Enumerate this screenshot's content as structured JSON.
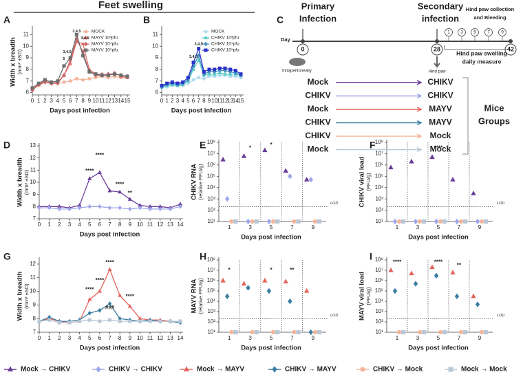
{
  "figure": {
    "title": "Feet swelling",
    "legend": [
      {
        "name": "Mock → CHIKV",
        "color": "#6a3d9a",
        "marker": "triangle"
      },
      {
        "name": "CHIKV → CHIKV",
        "color": "#9ea6ea",
        "marker": "diamond"
      },
      {
        "name": "Mock → MAYV",
        "color": "#e2645c",
        "marker": "triangle"
      },
      {
        "name": "CHIKV → MAYV",
        "color": "#3b7ea1",
        "marker": "diamond"
      },
      {
        "name": "CHIKV → Mock",
        "color": "#f3b59a",
        "marker": "circle"
      },
      {
        "name": "Mock → Mock",
        "color": "#b9c7d6",
        "marker": "square"
      }
    ]
  },
  "diagram": {
    "panel": "C",
    "primary": [
      "Primary",
      "Infection"
    ],
    "secondary": [
      "Secondary",
      "infection"
    ],
    "collection": [
      "Hind paw collection",
      "and Bleeding"
    ],
    "day": "Day",
    "days": [
      "0",
      "28",
      "42"
    ],
    "sample_days": [
      "1",
      "3",
      "5",
      "7",
      "9"
    ],
    "measure": [
      "Hind paw swelling",
      "daily measure"
    ],
    "route1": "Intraperitoneally",
    "route2": "Hind paw",
    "groups_label": [
      "Mice",
      "Groups"
    ],
    "groups": [
      {
        "primary": "Mock",
        "secondary": "CHIKV",
        "color": "#6a3d9a"
      },
      {
        "primary": "CHIKV",
        "secondary": "CHIKV",
        "color": "#9ea6ea"
      },
      {
        "primary": "Mock",
        "secondary": "MAYV",
        "color": "#e2645c"
      },
      {
        "primary": "CHIKV",
        "secondary": "MAYV",
        "color": "#3b7ea1"
      },
      {
        "primary": "CHIKV",
        "secondary": "Mock",
        "color": "#f3b59a"
      },
      {
        "primary": "Mock",
        "secondary": "Mock",
        "color": "#b9c7d6"
      }
    ]
  },
  "chart_data": [
    {
      "type": "line",
      "panel": "A",
      "xlabel": "Days post infection",
      "ylabel": [
        "Width x breadth",
        "(mm² ±SD)"
      ],
      "x": [
        0,
        1,
        2,
        3,
        4,
        5,
        6,
        7,
        8,
        9,
        10,
        11,
        12,
        13,
        14,
        15
      ],
      "xlim": [
        0,
        15
      ],
      "xticks": [
        0,
        1,
        2,
        3,
        4,
        5,
        6,
        7,
        8,
        9,
        10,
        11,
        12,
        13,
        14,
        15
      ],
      "ylim": [
        5.8,
        11.5
      ],
      "yticks": [
        6,
        7,
        8,
        9,
        10,
        11
      ],
      "legend": true,
      "series": [
        {
          "name": "MOCK",
          "color": "#f4b49c",
          "marker": "circle",
          "values": [
            6.3,
            6.6,
            6.9,
            6.8,
            6.8,
            6.9,
            7.0,
            7.2,
            7.1,
            7.2,
            7.3,
            7.4,
            7.3,
            7.4,
            7.3,
            7.3
          ]
        },
        {
          "name": "MAYV 10³pfu",
          "color": "#e57370",
          "marker": "triangle",
          "values": [
            6.3,
            6.7,
            7.0,
            6.8,
            6.9,
            7.5,
            8.5,
            10.4,
            10.2,
            8.0,
            7.6,
            7.6,
            7.5,
            7.7,
            7.4,
            7.3
          ]
        },
        {
          "name": "MAYV 10⁴pfu",
          "color": "#c9666b",
          "marker": "diamond",
          "values": [
            6.2,
            6.7,
            6.9,
            6.8,
            6.8,
            7.5,
            8.8,
            10.6,
            9.5,
            7.8,
            7.5,
            7.5,
            7.6,
            7.6,
            7.5,
            7.4
          ]
        },
        {
          "name": "MAYV 10⁵pfu",
          "color": "#6d6d6d",
          "marker": "square",
          "values": [
            6.4,
            6.8,
            7.1,
            6.9,
            7.0,
            8.3,
            9.0,
            11.0,
            9.2,
            7.8,
            7.6,
            7.5,
            7.5,
            7.6,
            7.5,
            7.4
          ]
        }
      ],
      "annotations": [
        {
          "x": 5,
          "y": 8.9,
          "text": "5"
        },
        {
          "x": 5.5,
          "y": 9.5,
          "text": "3,4,5"
        },
        {
          "x": 7,
          "y": 11.3,
          "text": "3,4,5"
        },
        {
          "x": 8.3,
          "y": 10.7,
          "text": "3,4,5"
        }
      ]
    },
    {
      "type": "line",
      "panel": "B",
      "xlabel": "Days post infection",
      "x": [
        0,
        1,
        2,
        3,
        4,
        5,
        6,
        7,
        8,
        9,
        10,
        11,
        12,
        13,
        14,
        15
      ],
      "xlim": [
        0,
        15
      ],
      "xticks": [
        0,
        1,
        2,
        3,
        4,
        5,
        6,
        7,
        8,
        9,
        10,
        11,
        12,
        13,
        14,
        15
      ],
      "ylim": [
        5.8,
        11.5
      ],
      "yticks": [
        6,
        7,
        8,
        9,
        10,
        11
      ],
      "legend": true,
      "series": [
        {
          "name": "MOCK",
          "color": "#b3dcef",
          "marker": "circle",
          "values": [
            6.4,
            6.5,
            6.6,
            6.6,
            6.6,
            6.8,
            7.1,
            7.3,
            7.2,
            7.4,
            7.4,
            7.5,
            7.5,
            7.4,
            7.4,
            7.3
          ]
        },
        {
          "name": "CHIKV 10³pfu",
          "color": "#5fcdc7",
          "marker": "triangle",
          "values": [
            6.5,
            6.6,
            6.7,
            6.6,
            6.7,
            7.0,
            8.0,
            8.8,
            7.5,
            7.6,
            7.6,
            7.7,
            7.6,
            7.6,
            7.6,
            7.5
          ]
        },
        {
          "name": "CHIKV 10⁴pfu",
          "color": "#3f8fc0",
          "marker": "diamond",
          "values": [
            6.5,
            6.7,
            6.8,
            6.7,
            6.8,
            7.1,
            8.3,
            9.2,
            7.6,
            7.8,
            7.8,
            7.9,
            7.9,
            7.8,
            7.7,
            7.5
          ]
        },
        {
          "name": "CHIKV 10⁵pfu",
          "color": "#2a33c7",
          "marker": "square",
          "values": [
            6.6,
            6.8,
            6.9,
            6.8,
            6.9,
            7.3,
            8.6,
            9.8,
            7.8,
            8.0,
            8.0,
            8.1,
            8.1,
            8.0,
            7.9,
            7.6
          ]
        }
      ],
      "annotations": [
        {
          "x": 6,
          "y": 9.1,
          "text": "3,4,5"
        },
        {
          "x": 7,
          "y": 10.2,
          "text": "3,4,5"
        }
      ]
    },
    {
      "type": "line",
      "panel": "D",
      "xlabel": "Days post infection",
      "ylabel": [
        "Width x breadth",
        "(mm² ±SD)"
      ],
      "x": [
        0,
        1,
        2,
        3,
        4,
        5,
        6,
        7,
        8,
        9,
        10,
        11,
        12,
        13,
        14
      ],
      "xlim": [
        0,
        14
      ],
      "xticks": [
        0,
        1,
        2,
        3,
        4,
        5,
        6,
        7,
        8,
        9,
        10,
        11,
        12,
        13,
        14
      ],
      "ylim": [
        7,
        13
      ],
      "yticks": [
        7,
        8,
        9,
        10,
        11,
        12,
        13
      ],
      "series": [
        {
          "color": "#6a3d9a",
          "marker": "triangle",
          "values": [
            8.0,
            8.0,
            8.0,
            7.9,
            8.1,
            10.3,
            10.8,
            9.3,
            9.2,
            8.6,
            8.1,
            8.0,
            8.0,
            7.9,
            8.2
          ]
        },
        {
          "color": "#9ea6ea",
          "marker": "diamond",
          "values": [
            7.9,
            7.9,
            7.8,
            7.8,
            7.9,
            8.0,
            8.0,
            7.9,
            7.9,
            7.8,
            7.9,
            7.8,
            7.8,
            7.8,
            8.0
          ]
        }
      ],
      "annotations": [
        {
          "x": 5,
          "y": 10.9,
          "text": "****"
        },
        {
          "x": 6,
          "y": 12.2,
          "text": "****"
        },
        {
          "x": 8,
          "y": 9.8,
          "text": "****"
        },
        {
          "x": 9,
          "y": 9.1,
          "text": "**"
        }
      ]
    },
    {
      "type": "scatter",
      "panel": "E",
      "xlabel": "Days post infection",
      "ylabel": [
        "CHIKV RNA",
        "(relative PFU/g)"
      ],
      "categories": [
        1,
        3,
        5,
        7,
        9
      ],
      "log": true,
      "ylim": [
        10,
        100000000
      ],
      "yticks": [
        {
          "value": 10,
          "label": "10¹"
        },
        {
          "value": 100,
          "label": "10²"
        },
        {
          "value": 1000,
          "label": "10³"
        },
        {
          "value": 10000,
          "label": "10⁴"
        },
        {
          "value": 100000,
          "label": "10⁵"
        },
        {
          "value": 1000000,
          "label": "10⁶"
        },
        {
          "value": 10000000,
          "label": "10⁷"
        },
        {
          "value": 100000000,
          "label": "10⁸"
        }
      ],
      "lod": 200,
      "lod_label": "LOD",
      "series": [
        {
          "color": "#6a3d9a",
          "marker": "triangle",
          "values": [
            3000000,
            6000000,
            20000000,
            300000,
            50000
          ]
        },
        {
          "color": "#9ea6ea",
          "marker": "diamond",
          "values": [
            1000,
            10,
            10,
            100000,
            50000
          ]
        },
        {
          "color": "#f3b59a",
          "marker": "circle",
          "values": [
            10,
            10,
            10,
            10,
            10
          ]
        },
        {
          "color": "#b9c7d6",
          "marker": "square",
          "values": [
            10,
            10,
            10,
            10,
            10
          ]
        }
      ],
      "annotations": [
        {
          "x": 3,
          "y": 30000000,
          "text": "*"
        },
        {
          "x": 5,
          "y": 60000000,
          "text": "*"
        }
      ]
    },
    {
      "type": "scatter",
      "panel": "F",
      "xlabel": "Days post infection",
      "ylabel": [
        "CHIKV viral load",
        "(PFU/g)"
      ],
      "categories": [
        1,
        3,
        5,
        7,
        9
      ],
      "log": true,
      "ylim": [
        10,
        100000000
      ],
      "yticks": [
        {
          "value": 10,
          "label": "10¹"
        },
        {
          "value": 100,
          "label": "10²"
        },
        {
          "value": 1000,
          "label": "10³"
        },
        {
          "value": 10000,
          "label": "10⁴"
        },
        {
          "value": 100000,
          "label": "10⁵"
        },
        {
          "value": 1000000,
          "label": "10⁶"
        },
        {
          "value": 10000000,
          "label": "10⁷"
        },
        {
          "value": 100000000,
          "label": "10⁸"
        }
      ],
      "lod": 200,
      "lod_label": "LOD",
      "series": [
        {
          "color": "#6a3d9a",
          "marker": "triangle",
          "values": [
            600000,
            2000000,
            5000000,
            50000,
            3000
          ]
        },
        {
          "color": "#9ea6ea",
          "marker": "diamond",
          "values": [
            10,
            10,
            10,
            10,
            10
          ]
        },
        {
          "color": "#f3b59a",
          "marker": "circle",
          "values": [
            10,
            10,
            10,
            10,
            10
          ]
        },
        {
          "color": "#b9c7d6",
          "marker": "square",
          "values": [
            10,
            10,
            10,
            10,
            10
          ]
        }
      ],
      "annotations": [
        {
          "x": 5,
          "y": 30000000,
          "text": "****"
        }
      ]
    },
    {
      "type": "line",
      "panel": "G",
      "xlabel": "Days post infection",
      "ylabel": [
        "Width x breadth",
        "(mm² ±SD)"
      ],
      "x": [
        0,
        1,
        2,
        3,
        4,
        5,
        6,
        7,
        8,
        9,
        10,
        11,
        12,
        13,
        14
      ],
      "xlim": [
        0,
        14
      ],
      "xticks": [
        0,
        1,
        2,
        3,
        4,
        5,
        6,
        7,
        8,
        9,
        10,
        11,
        12,
        13,
        14
      ],
      "ylim": [
        7,
        12.3
      ],
      "yticks": [
        7,
        8,
        9,
        10,
        11,
        12
      ],
      "series": [
        {
          "color": "#e2645c",
          "marker": "triangle",
          "values": [
            7.8,
            8.0,
            7.8,
            7.7,
            7.8,
            9.4,
            10.0,
            11.6,
            9.7,
            8.9,
            8.0,
            7.9,
            7.9,
            7.8,
            7.8
          ]
        },
        {
          "color": "#3b7ea1",
          "marker": "diamond",
          "values": [
            7.8,
            8.1,
            7.8,
            7.8,
            7.9,
            8.4,
            8.6,
            9.1,
            8.0,
            7.9,
            7.8,
            7.9,
            7.8,
            7.8,
            7.7
          ]
        },
        {
          "color": "#b9c7d6",
          "marker": "square",
          "values": [
            7.8,
            7.9,
            7.7,
            7.7,
            7.8,
            7.9,
            7.8,
            7.9,
            7.8,
            7.8,
            7.8,
            7.8,
            7.8,
            7.8,
            7.8
          ]
        }
      ],
      "annotations": [
        {
          "x": 5,
          "y": 10.1,
          "text": "****"
        },
        {
          "x": 6,
          "y": 10.8,
          "text": "****"
        },
        {
          "x": 7,
          "y": 12.1,
          "text": "****"
        },
        {
          "x": 7,
          "y": 8.8,
          "text": "###"
        },
        {
          "x": 9,
          "y": 9.6,
          "text": "****"
        }
      ]
    },
    {
      "type": "scatter",
      "panel": "H",
      "xlabel": "Days post infection",
      "ylabel": [
        "MAYV RNA",
        "(relative PFU/g)"
      ],
      "categories": [
        1,
        3,
        5,
        7,
        9
      ],
      "log": true,
      "ylim": [
        10,
        100000000
      ],
      "yticks": [
        {
          "value": 10,
          "label": "10¹"
        },
        {
          "value": 100,
          "label": "10²"
        },
        {
          "value": 1000,
          "label": "10³"
        },
        {
          "value": 10000,
          "label": "10⁴"
        },
        {
          "value": 100000,
          "label": "10⁵"
        },
        {
          "value": 1000000,
          "label": "10⁶"
        },
        {
          "value": 10000000,
          "label": "10⁷"
        },
        {
          "value": 100000000,
          "label": "10⁸"
        }
      ],
      "lod": 200,
      "lod_label": "LOD",
      "series": [
        {
          "color": "#e2645c",
          "marker": "triangle",
          "values": [
            1000000,
            500000,
            1000000,
            800000,
            100000
          ]
        },
        {
          "color": "#3b7ea1",
          "marker": "diamond",
          "values": [
            30000,
            200000,
            100000,
            10000,
            10
          ]
        },
        {
          "color": "#f3b59a",
          "marker": "circle",
          "values": [
            10,
            10,
            10,
            10,
            10
          ]
        },
        {
          "color": "#b9c7d6",
          "marker": "square",
          "values": [
            10,
            10,
            10,
            10,
            10
          ]
        }
      ],
      "annotations": [
        {
          "x": 1,
          "y": 10000000,
          "text": "*"
        },
        {
          "x": 5,
          "y": 10000000,
          "text": "*"
        },
        {
          "x": 7,
          "y": 10000000,
          "text": "**"
        }
      ]
    },
    {
      "type": "scatter",
      "panel": "I",
      "xlabel": "Days post infection",
      "ylabel": [
        "MAYV viral load",
        "(PFU/g)"
      ],
      "categories": [
        1,
        3,
        5,
        7,
        9
      ],
      "log": true,
      "ylim": [
        10,
        100000000
      ],
      "yticks": [
        {
          "value": 10,
          "label": "10¹"
        },
        {
          "value": 100,
          "label": "10²"
        },
        {
          "value": 1000,
          "label": "10³"
        },
        {
          "value": 10000,
          "label": "10⁴"
        },
        {
          "value": 100000,
          "label": "10⁵"
        },
        {
          "value": 1000000,
          "label": "10⁶"
        },
        {
          "value": 10000000,
          "label": "10⁷"
        },
        {
          "value": 100000000,
          "label": "10⁸"
        }
      ],
      "lod": 200,
      "lod_label": "LOD",
      "series": [
        {
          "color": "#e2645c",
          "marker": "triangle",
          "values": [
            10000000,
            5000000,
            20000000,
            6000000,
            30000
          ]
        },
        {
          "color": "#3b7ea1",
          "marker": "diamond",
          "values": [
            100000,
            500000,
            3000000,
            30000,
            5000
          ]
        },
        {
          "color": "#f3b59a",
          "marker": "circle",
          "values": [
            10,
            10,
            10,
            10,
            10
          ]
        },
        {
          "color": "#b9c7d6",
          "marker": "square",
          "values": [
            10,
            10,
            10,
            10,
            10
          ]
        }
      ],
      "annotations": [
        {
          "x": 1,
          "y": 60000000,
          "text": "****"
        },
        {
          "x": 5,
          "y": 60000000,
          "text": "****"
        },
        {
          "x": 7,
          "y": 30000000,
          "text": "**"
        }
      ]
    }
  ]
}
